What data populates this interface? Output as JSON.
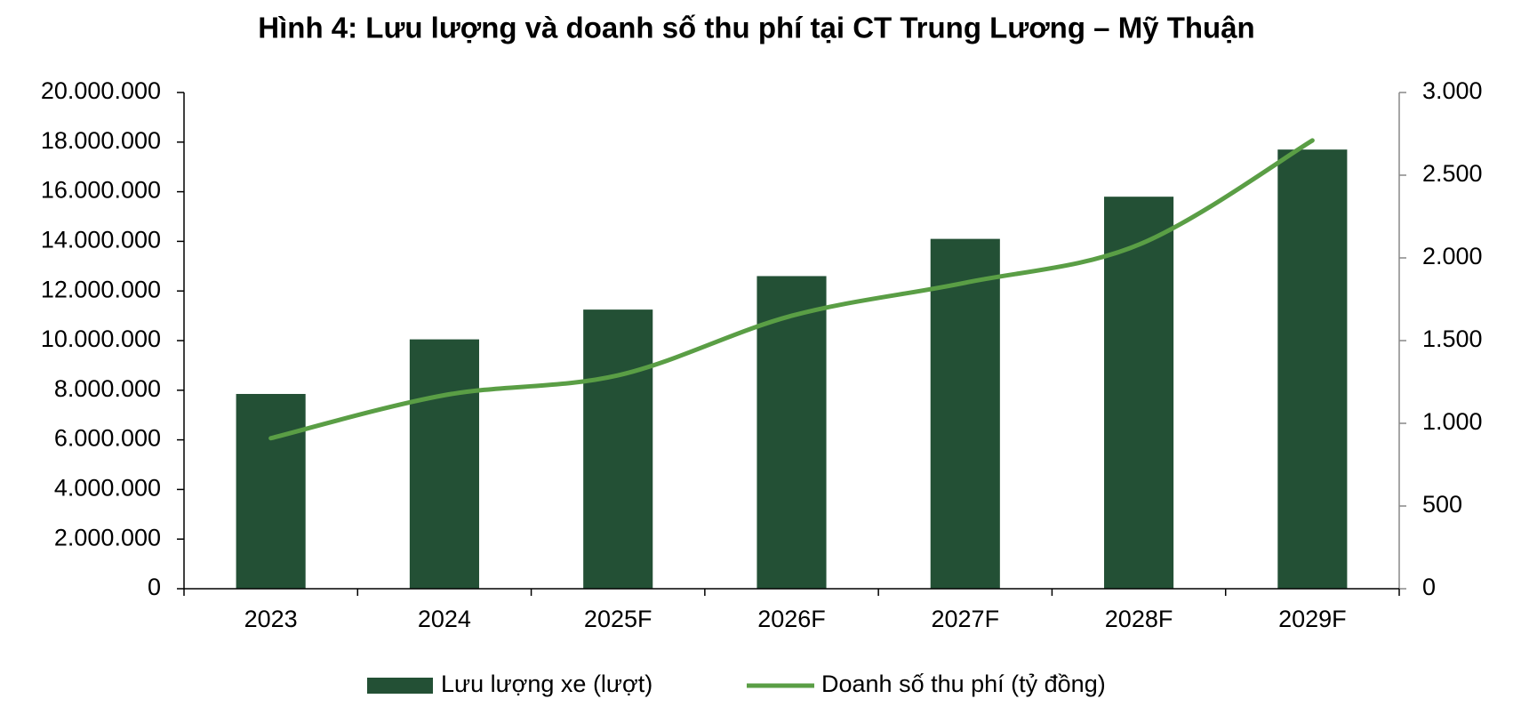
{
  "chart_data": {
    "type": "bar-line",
    "title": "Hình 4: Lưu lượng và doanh số thu phí tại CT Trung Lương – Mỹ Thuận",
    "categories": [
      "2023",
      "2024",
      "2025F",
      "2026F",
      "2027F",
      "2028F",
      "2029F"
    ],
    "series": [
      {
        "name": "Lưu lượng xe (lượt)",
        "type": "bar",
        "color": "#235035",
        "values": [
          7850000,
          10050000,
          11250000,
          12600000,
          14100000,
          15800000,
          17700000
        ]
      },
      {
        "name": "Doanh số thu phí (tỷ đồng)",
        "type": "line",
        "axis": "y2",
        "color": "#5a9e45",
        "values": [
          910,
          1170,
          1290,
          1650,
          1850,
          2080,
          2710
        ]
      }
    ],
    "ylim": [
      0,
      20000000
    ],
    "yticks": [
      0,
      {
        "value": 2000000,
        "label": "2.000.000"
      },
      {
        "value": 4000000,
        "label": "4.000.000"
      },
      {
        "value": 6000000,
        "label": "6.000.000"
      },
      {
        "value": 8000000,
        "label": "8.000.000"
      },
      {
        "value": 10000000,
        "label": "10.000.000"
      },
      {
        "value": 12000000,
        "label": "12.000.000"
      },
      {
        "value": 14000000,
        "label": "14.000.000"
      },
      {
        "value": 16000000,
        "label": "16.000.000"
      },
      {
        "value": 18000000,
        "label": "18.000.000"
      },
      {
        "value": 20000000,
        "label": "20.000.000"
      }
    ],
    "y2lim": [
      0,
      3000
    ],
    "y2ticks": [
      0,
      500,
      {
        "value": 1000,
        "label": "1.000"
      },
      {
        "value": 1500,
        "label": "1.500"
      },
      {
        "value": 2000,
        "label": "2.000"
      },
      {
        "value": 2500,
        "label": "2.500"
      },
      {
        "value": 3000,
        "label": "3.000"
      }
    ],
    "legend": "bottom"
  }
}
